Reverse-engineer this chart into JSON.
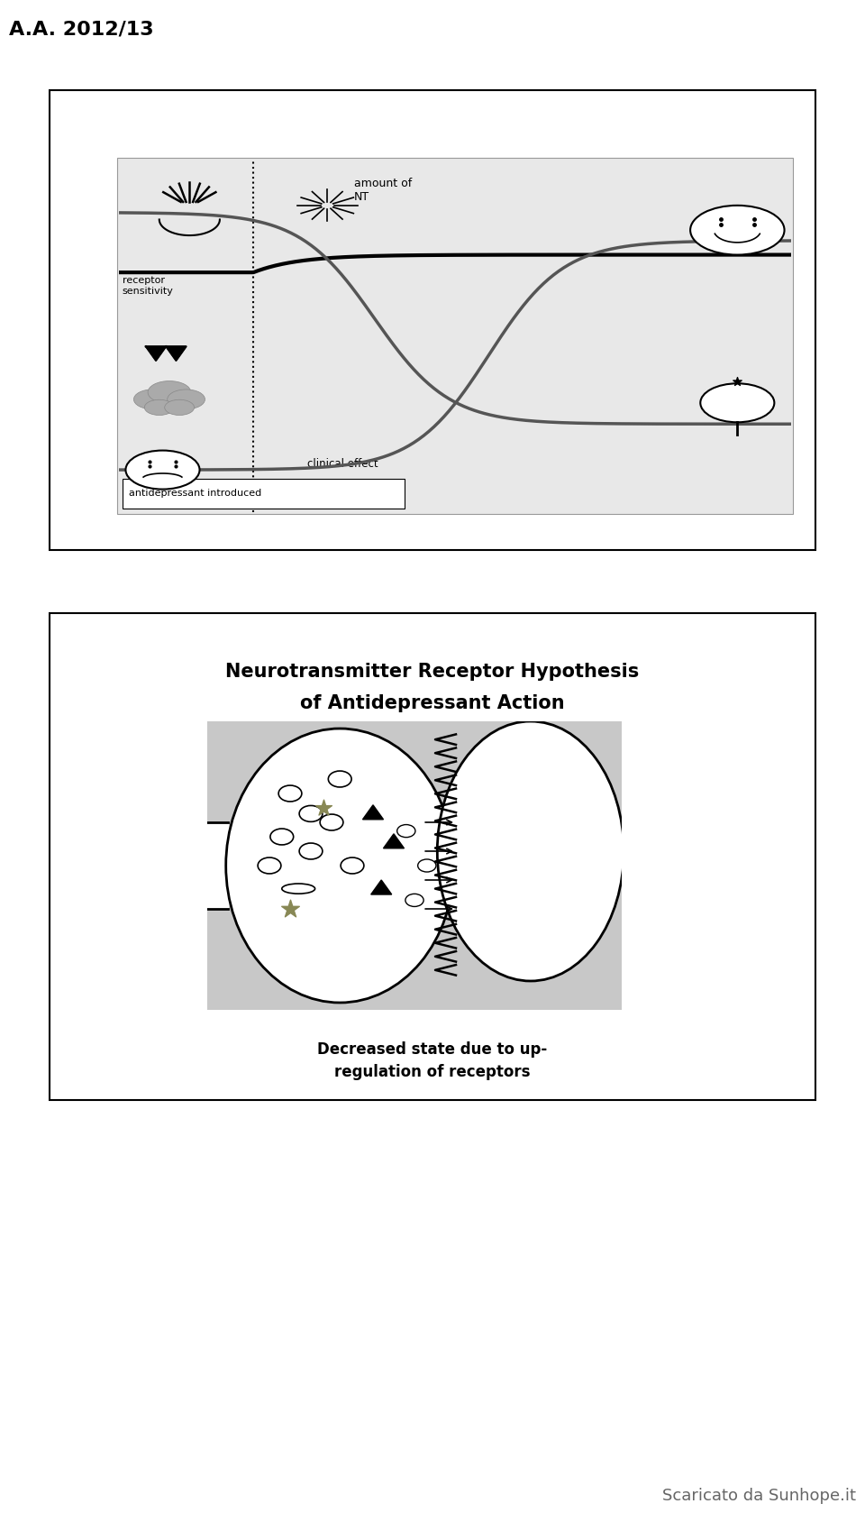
{
  "top_label": "A.A. 2012/13",
  "bottom_label": "Scaricato da Sunhope.it",
  "slide2_title_line1": "Neurotransmitter Receptor Hypothesis",
  "slide2_title_line2": "of Antidepressant Action",
  "slide2_caption_line1": "Decreased state due to up-",
  "slide2_caption_line2": "regulation of receptors",
  "label_receptor": "receptor\nsensitivity",
  "label_amount": "amount of\nNT",
  "label_clinical": "clinical effect",
  "label_antidep": "antidepressant introduced",
  "bg_color": "#ffffff",
  "inner_bg": "#e8e8e8",
  "curve_color": "#111111"
}
